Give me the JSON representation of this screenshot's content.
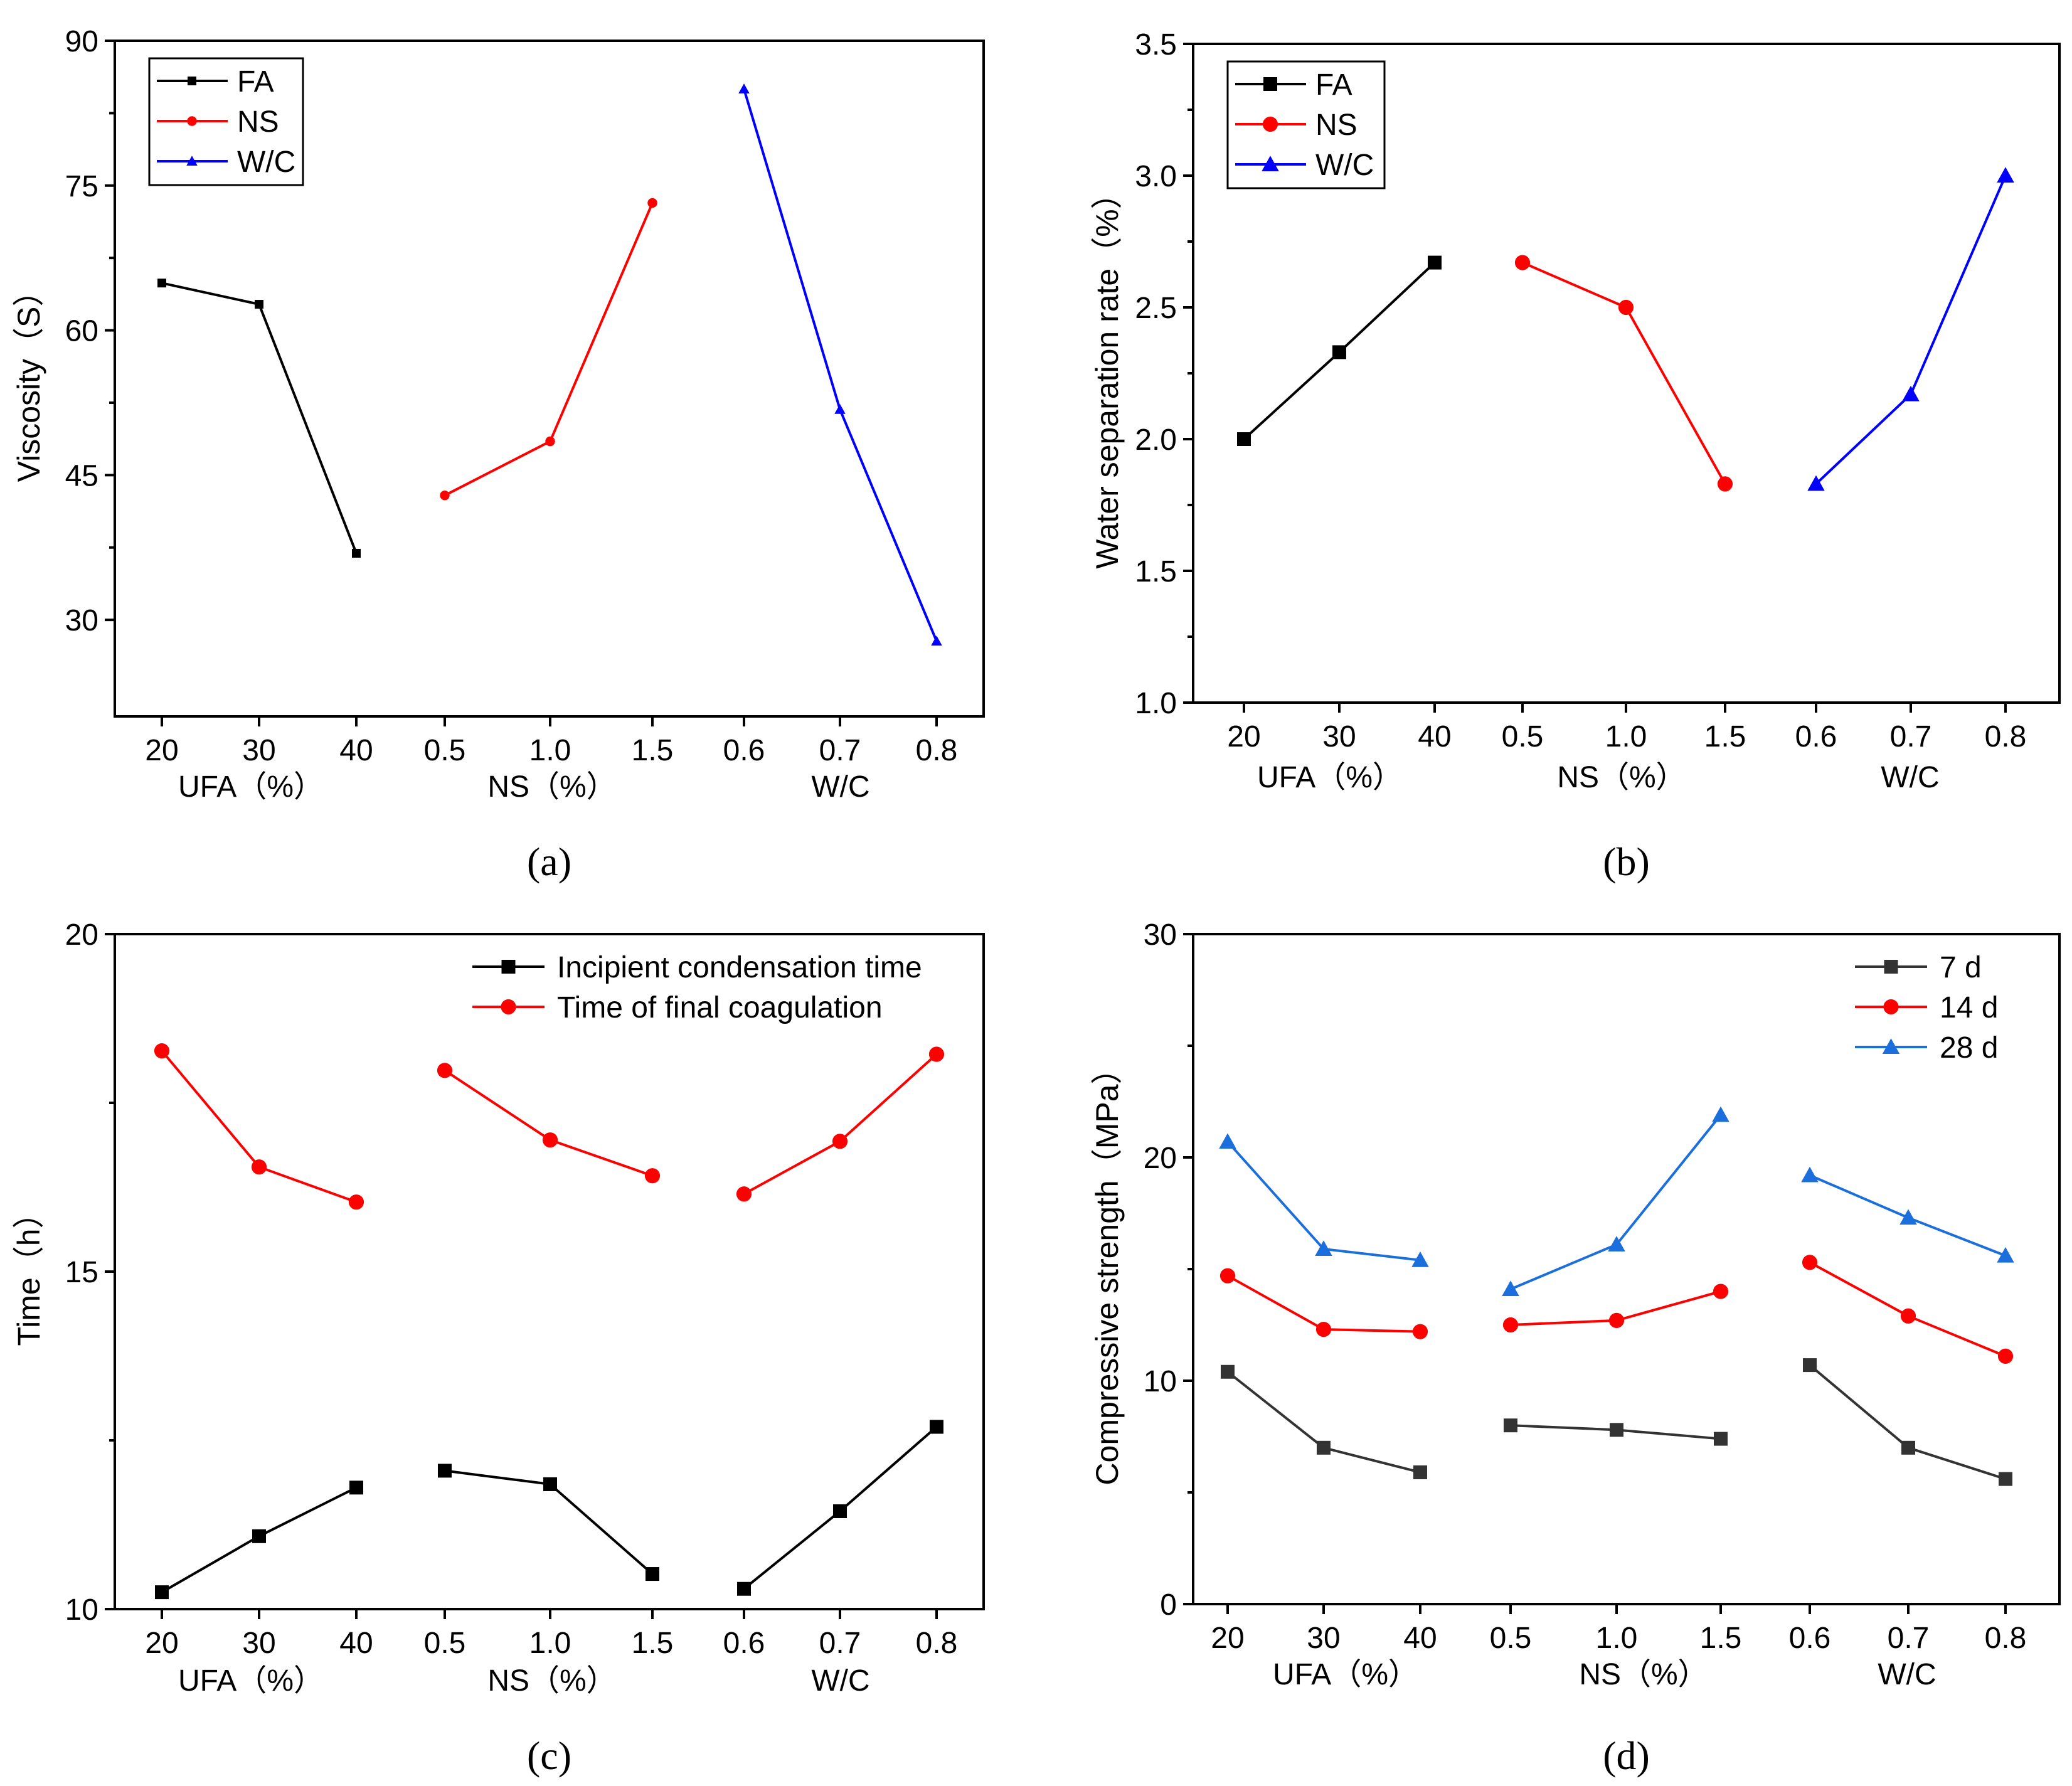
{
  "chart_data": [
    {
      "id": "a",
      "type": "line",
      "caption": "(a)",
      "ylabel": "Viscosity（S）",
      "ylim": [
        20,
        90
      ],
      "yticks": [
        30,
        45,
        60,
        75,
        90
      ],
      "x_tick_labels": [
        "20",
        "30",
        "40",
        "0.5",
        "1.0",
        "1.5",
        "0.6",
        "0.7",
        "0.8"
      ],
      "group_labels": [
        "UFA（%）",
        "NS（%）",
        "W/C"
      ],
      "legend_position": "top-left",
      "series": [
        {
          "name": "FA",
          "color": "#000000",
          "marker": "square",
          "group": 0,
          "values": [
            64.9,
            62.7,
            36.9
          ]
        },
        {
          "name": "NS",
          "color": "#ff0000",
          "marker": "circle",
          "group": 1,
          "values": [
            42.9,
            48.5,
            73.2
          ]
        },
        {
          "name": "W/C",
          "color": "#0000ff",
          "marker": "triangle",
          "group": 2,
          "values": [
            85.0,
            51.8,
            27.8
          ]
        }
      ]
    },
    {
      "id": "b",
      "type": "line",
      "caption": "(b)",
      "ylabel": "Water separation rate（%）",
      "ylim": [
        1.0,
        3.5
      ],
      "yticks": [
        1.0,
        1.5,
        2.0,
        2.5,
        3.0,
        3.5
      ],
      "x_tick_labels": [
        "20",
        "30",
        "40",
        "0.5",
        "1.0",
        "1.5",
        "0.6",
        "0.7",
        "0.8"
      ],
      "group_labels": [
        "UFA（%）",
        "NS（%）",
        "W/C"
      ],
      "legend_position": "top-left",
      "series": [
        {
          "name": "FA",
          "color": "#000000",
          "marker": "square",
          "group": 0,
          "values": [
            2.0,
            2.33,
            2.67
          ]
        },
        {
          "name": "NS",
          "color": "#ff0000",
          "marker": "circle",
          "group": 1,
          "values": [
            2.67,
            2.5,
            1.83
          ]
        },
        {
          "name": "W/C",
          "color": "#0000ff",
          "marker": "triangle",
          "group": 2,
          "values": [
            1.83,
            2.17,
            3.0
          ]
        }
      ]
    },
    {
      "id": "c",
      "type": "line",
      "caption": "(c)",
      "ylabel": "Time（h）",
      "ylim": [
        10,
        20
      ],
      "yticks": [
        10,
        15,
        20
      ],
      "x_tick_labels": [
        "20",
        "30",
        "40",
        "0.5",
        "1.0",
        "1.5",
        "0.6",
        "0.7",
        "0.8"
      ],
      "group_labels": [
        "UFA（%）",
        "NS（%）",
        "W/C"
      ],
      "legend_position": "top-right",
      "series": [
        {
          "name": "Incipient condensation time",
          "color": "#000000",
          "marker": "square",
          "values": [
            [
              10.25,
              11.08,
              11.8
            ],
            [
              12.05,
              11.85,
              10.52
            ],
            [
              10.3,
              11.45,
              12.7
            ]
          ]
        },
        {
          "name": "Time of final coagulation",
          "color": "#ff0000",
          "marker": "circle",
          "values": [
            [
              18.27,
              16.55,
              16.03
            ],
            [
              17.98,
              16.95,
              16.42
            ],
            [
              16.15,
              16.93,
              18.22
            ]
          ]
        }
      ]
    },
    {
      "id": "d",
      "type": "line",
      "caption": "(d)",
      "ylabel": "Compressive strength（MPa）",
      "ylim": [
        0,
        30
      ],
      "yticks": [
        0,
        10,
        20,
        30
      ],
      "x_tick_labels": [
        "20",
        "30",
        "40",
        "0.5",
        "1.0",
        "1.5",
        "0.6",
        "0.7",
        "0.8"
      ],
      "group_labels": [
        "UFA（%）",
        "NS（%）",
        "W/C"
      ],
      "legend_position": "top-right",
      "series": [
        {
          "name": "7 d",
          "color": "#333333",
          "line_color": "#333333",
          "marker": "square",
          "values": [
            [
              10.4,
              7.0,
              5.9
            ],
            [
              8.0,
              7.8,
              7.4
            ],
            [
              10.7,
              7.0,
              5.6
            ]
          ]
        },
        {
          "name": "14 d",
          "color": "#ff0000",
          "line_color": "#ff0000",
          "marker": "circle",
          "values": [
            [
              14.7,
              12.3,
              12.2
            ],
            [
              12.5,
              12.7,
              14.0
            ],
            [
              15.3,
              12.9,
              11.1
            ]
          ]
        },
        {
          "name": "28 d",
          "color": "#1a6fdc",
          "line_color": "#1a6fdc",
          "marker": "triangle",
          "values": [
            [
              20.7,
              15.9,
              15.4
            ],
            [
              14.1,
              16.1,
              21.9
            ],
            [
              19.2,
              17.3,
              15.6
            ]
          ]
        }
      ]
    }
  ]
}
